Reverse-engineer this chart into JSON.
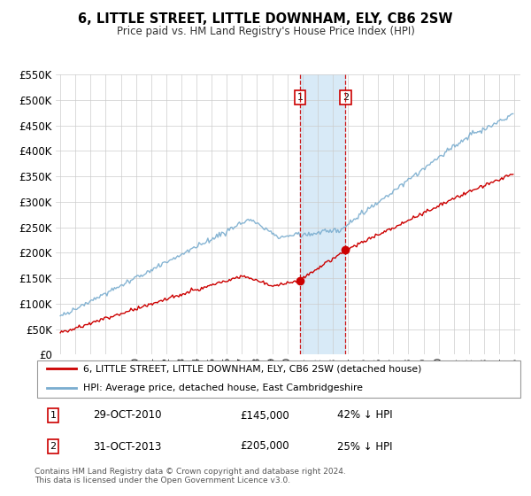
{
  "title": "6, LITTLE STREET, LITTLE DOWNHAM, ELY, CB6 2SW",
  "subtitle": "Price paid vs. HM Land Registry's House Price Index (HPI)",
  "legend_line1": "6, LITTLE STREET, LITTLE DOWNHAM, ELY, CB6 2SW (detached house)",
  "legend_line2": "HPI: Average price, detached house, East Cambridgeshire",
  "property_color": "#cc0000",
  "hpi_color": "#7aadcf",
  "transaction1_date": "29-OCT-2010",
  "transaction1_price": 145000,
  "transaction1_hpi_pct": "42% ↓ HPI",
  "transaction2_date": "31-OCT-2013",
  "transaction2_price": 205000,
  "transaction2_hpi_pct": "25% ↓ HPI",
  "footnote1": "Contains HM Land Registry data © Crown copyright and database right 2024.",
  "footnote2": "This data is licensed under the Open Government Licence v3.0.",
  "ylim": [
    0,
    550000
  ],
  "yticks": [
    0,
    50000,
    100000,
    150000,
    200000,
    250000,
    300000,
    350000,
    400000,
    450000,
    500000,
    550000
  ],
  "xlim_start": 1994.7,
  "xlim_end": 2025.4,
  "background_color": "#ffffff",
  "grid_color": "#cccccc",
  "shade_color": "#d8eaf7",
  "badge_edgecolor": "#cc0000"
}
